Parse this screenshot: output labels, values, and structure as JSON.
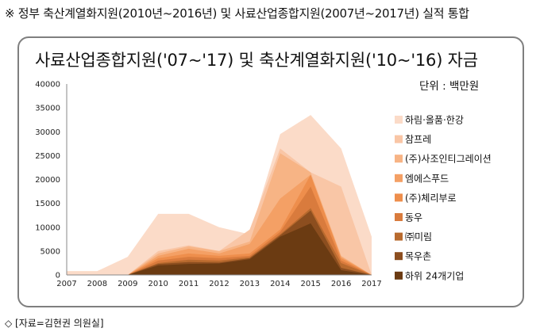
{
  "header": "※ 정부 축산계열화지원(2010년~2016년) 및 사료산업종합지원(2007년~2017년) 실적 통합",
  "footer": "◇ [자료=김현권 의원실]",
  "colors": [
    "#6b3b12",
    "#8c4e1f",
    "#b86a2e",
    "#d97b3d",
    "#ee8e4c",
    "#f4a065",
    "#f7b485",
    "#f9c6a6",
    "#fbdbc8"
  ],
  "chart_data": {
    "type": "area",
    "stacked": false,
    "title": "사료산업종합지원('07~'17) 및 축산계열화지원('10~'16) 자금",
    "unit_label": "단위 : 백만원",
    "x": [
      "2007",
      "2008",
      "2009",
      "2010",
      "2011",
      "2012",
      "2013",
      "2014",
      "2015",
      "2016",
      "2017"
    ],
    "ylim": [
      0,
      40000
    ],
    "yticks": [
      0,
      5000,
      10000,
      15000,
      20000,
      25000,
      30000,
      35000,
      40000
    ],
    "legend_position": "right",
    "series": [
      {
        "name": "하림·올품·한강",
        "values": [
          800,
          800,
          3800,
          12800,
          12800,
          10000,
          8500,
          29500,
          33500,
          26500,
          8000
        ]
      },
      {
        "name": "참프레",
        "values": [
          0,
          0,
          0,
          5000,
          6200,
          5000,
          9500,
          26500,
          21500,
          18500,
          0
        ]
      },
      {
        "name": "(주)사조인티그레이션",
        "values": [
          0,
          0,
          0,
          4500,
          6000,
          5000,
          7000,
          25500,
          21500,
          4000,
          0
        ]
      },
      {
        "name": "엠에스푸드",
        "values": [
          0,
          0,
          0,
          4000,
          5500,
          4500,
          6500,
          16000,
          21000,
          3800,
          0
        ]
      },
      {
        "name": "(주)체리부로",
        "values": [
          0,
          0,
          0,
          3500,
          4500,
          4000,
          4500,
          9500,
          21000,
          3500,
          0
        ]
      },
      {
        "name": "동우",
        "values": [
          0,
          0,
          0,
          3000,
          3800,
          3500,
          4000,
          9000,
          18500,
          3000,
          0
        ]
      },
      {
        "name": "㈜미림",
        "values": [
          0,
          0,
          0,
          2500,
          3200,
          3000,
          3700,
          8500,
          14000,
          2500,
          0
        ]
      },
      {
        "name": "목우촌",
        "values": [
          0,
          0,
          0,
          2300,
          2700,
          2600,
          3500,
          8300,
          13500,
          1500,
          0
        ]
      },
      {
        "name": "하위 24개기업",
        "values": [
          0,
          0,
          0,
          2000,
          2300,
          2400,
          3300,
          8000,
          10800,
          1000,
          0
        ]
      }
    ]
  }
}
